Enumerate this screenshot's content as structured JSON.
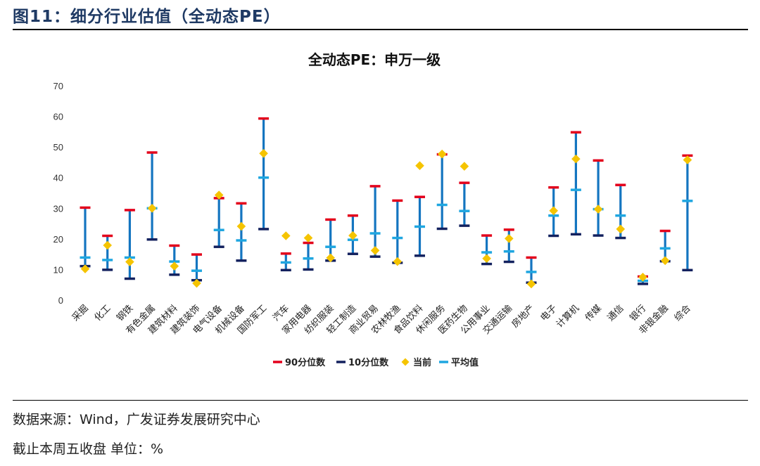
{
  "header": {
    "figure_title": "图11：细分行业估值（全动态PE）"
  },
  "footer": {
    "source": "数据来源：Wind，广发证券发展研究中心",
    "note": "截止本周五收盘 单位：%"
  },
  "colors": {
    "p90": "#e3001b",
    "p10": "#13215e",
    "current": "#f5c400",
    "mean": "#1fa6e0",
    "range": "#1475c0",
    "title_blue": "#1f3a64"
  },
  "chart_data": {
    "type": "range",
    "title": "全动态PE：申万一级",
    "ylim": [
      0,
      70
    ],
    "yticks": [
      0,
      10,
      20,
      30,
      40,
      50,
      60,
      70
    ],
    "grid": false,
    "legend_position": "bottom",
    "categories": [
      "采掘",
      "化工",
      "钢铁",
      "有色金属",
      "建筑材料",
      "建筑装饰",
      "电气设备",
      "机械设备",
      "国防军工",
      "汽车",
      "家用电器",
      "纺织服装",
      "轻工制造",
      "商业贸易",
      "农林牧渔",
      "食品饮料",
      "休闲服务",
      "医药生物",
      "公用事业",
      "交通运输",
      "房地产",
      "电子",
      "计算机",
      "传媒",
      "通信",
      "银行",
      "非银金融",
      "综合"
    ],
    "series": [
      {
        "name": "90分位数",
        "key": "p90",
        "values": [
          30.2,
          21.0,
          29.4,
          48.2,
          17.8,
          14.9,
          33.3,
          31.6,
          59.3,
          15.2,
          18.7,
          26.3,
          27.6,
          37.2,
          32.5,
          33.7,
          47.6,
          38.3,
          21.1,
          23.0,
          13.9,
          36.8,
          54.8,
          45.6,
          37.6,
          7.7,
          22.6,
          47.2
        ]
      },
      {
        "name": "10分位数",
        "key": "p10",
        "values": [
          11.1,
          9.9,
          7.0,
          19.8,
          8.3,
          6.5,
          17.4,
          12.9,
          23.2,
          9.8,
          10.0,
          12.9,
          15.1,
          14.2,
          12.2,
          14.5,
          23.3,
          24.3,
          11.8,
          12.5,
          5.7,
          21.0,
          21.5,
          21.1,
          20.3,
          5.3,
          12.7,
          9.8
        ]
      },
      {
        "name": "当前",
        "key": "current",
        "values": [
          10.2,
          17.9,
          12.5,
          30.0,
          11.1,
          5.5,
          34.3,
          24.1,
          47.9,
          21.0,
          20.3,
          13.8,
          21.1,
          16.2,
          12.6,
          43.9,
          47.7,
          43.7,
          13.6,
          20.1,
          5.3,
          29.2,
          46.1,
          29.7,
          23.2,
          7.5,
          12.9,
          45.8
        ]
      },
      {
        "name": "平均值",
        "key": "mean",
        "values": [
          13.9,
          13.1,
          13.9,
          30.0,
          12.6,
          9.6,
          22.9,
          19.5,
          40.0,
          12.3,
          13.6,
          17.4,
          19.7,
          21.8,
          20.3,
          24.0,
          31.1,
          29.1,
          15.6,
          15.9,
          9.2,
          27.6,
          36.0,
          29.7,
          27.6,
          6.3,
          16.9,
          32.4
        ]
      }
    ]
  }
}
